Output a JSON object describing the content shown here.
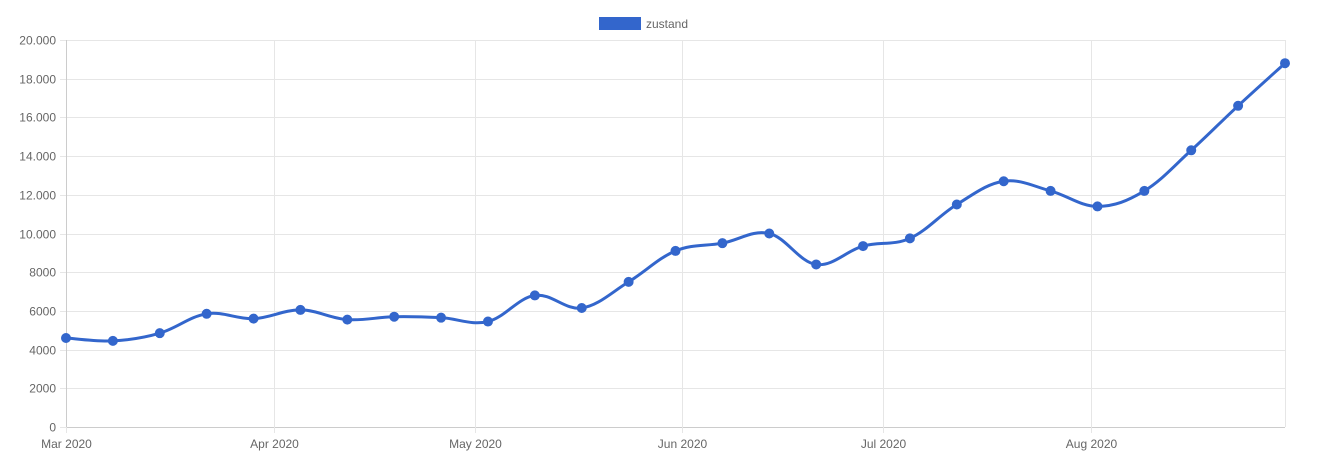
{
  "chart_data": {
    "type": "line",
    "x_type": "date",
    "x": [
      "2020-03-01",
      "2020-03-08",
      "2020-03-15",
      "2020-03-22",
      "2020-03-29",
      "2020-04-05",
      "2020-04-12",
      "2020-04-19",
      "2020-04-26",
      "2020-05-03",
      "2020-05-10",
      "2020-05-17",
      "2020-05-24",
      "2020-05-31",
      "2020-06-07",
      "2020-06-14",
      "2020-06-21",
      "2020-06-28",
      "2020-07-05",
      "2020-07-12",
      "2020-07-19",
      "2020-07-26",
      "2020-08-02",
      "2020-08-09",
      "2020-08-16",
      "2020-08-23",
      "2020-08-30"
    ],
    "series": [
      {
        "name": "zustand",
        "color": "#3366CC",
        "values": [
          4600,
          4450,
          4850,
          5850,
          5600,
          6050,
          5550,
          5700,
          5650,
          5450,
          6800,
          6150,
          7500,
          9100,
          9500,
          10000,
          8400,
          9350,
          9750,
          11500,
          12700,
          12200,
          11400,
          12200,
          14300,
          16600,
          18800
        ]
      }
    ],
    "ylim": [
      0,
      20000
    ],
    "y_ticks": [
      0,
      2000,
      4000,
      6000,
      8000,
      10000,
      12000,
      14000,
      16000,
      18000,
      20000
    ],
    "y_tick_labels": [
      "0",
      "2000",
      "4000",
      "6000",
      "8000",
      "10.000",
      "12.000",
      "14.000",
      "16.000",
      "18.000",
      "20.000"
    ],
    "xlim": [
      "2020-03-01",
      "2020-08-30"
    ],
    "x_ticks": [
      "2020-03-01",
      "2020-04-01",
      "2020-05-01",
      "2020-06-01",
      "2020-07-01",
      "2020-08-01"
    ],
    "x_tick_labels": [
      "Mar 2020",
      "Apr 2020",
      "May 2020",
      "Jun 2020",
      "Jul 2020",
      "Aug 2020"
    ],
    "grid": true,
    "legend_position": "top-center"
  }
}
